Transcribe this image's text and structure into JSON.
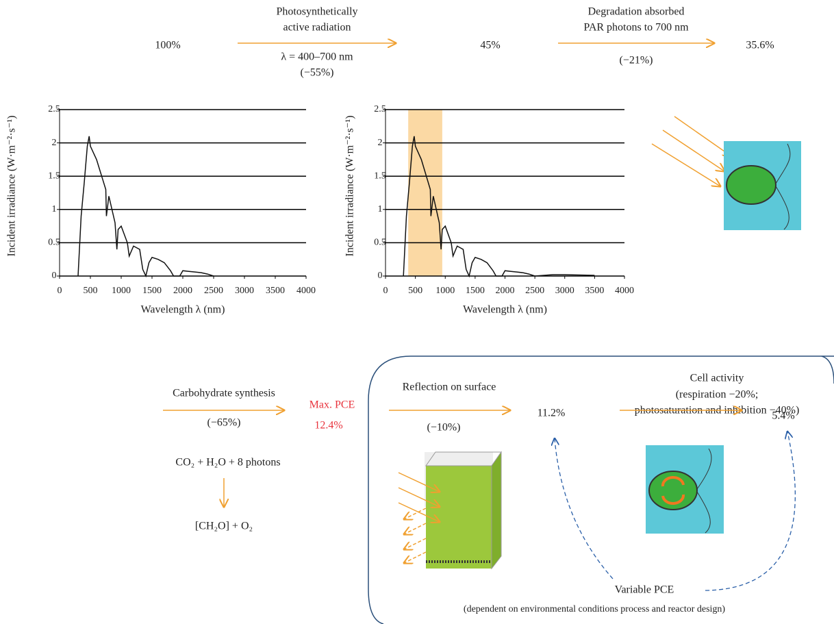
{
  "chart_data": [
    {
      "type": "line",
      "y_label": "Incident irradiance (W·m⁻²·s⁻¹)",
      "x_label": "Wavelength λ (nm)",
      "xlim": [
        0,
        4000
      ],
      "xticks": [
        0,
        500,
        1000,
        1500,
        2000,
        2500,
        3000,
        3500,
        4000
      ],
      "ylim": [
        0,
        2.5
      ],
      "yticks": [
        0,
        0.5,
        1,
        1.5,
        2,
        2.5
      ],
      "grid": true,
      "color": "#111111",
      "x": [
        300,
        350,
        400,
        450,
        480,
        500,
        550,
        600,
        650,
        700,
        750,
        760,
        800,
        900,
        930,
        950,
        1000,
        1100,
        1130,
        1200,
        1300,
        1350,
        1400,
        1450,
        1500,
        1600,
        1700,
        1800,
        1850,
        1950,
        2000,
        2100,
        2200,
        2300,
        2400,
        2500
      ],
      "values": [
        0,
        0.9,
        1.4,
        1.95,
        2.1,
        1.95,
        1.85,
        1.75,
        1.6,
        1.45,
        1.3,
        0.9,
        1.2,
        0.8,
        0.4,
        0.7,
        0.75,
        0.5,
        0.3,
        0.45,
        0.4,
        0.1,
        0,
        0.2,
        0.28,
        0.25,
        0.2,
        0.08,
        0,
        0,
        0.08,
        0.07,
        0.06,
        0.05,
        0.03,
        0
      ]
    },
    {
      "type": "line",
      "y_label": "Incident irradiance (W·m⁻²·s⁻¹)",
      "x_label": "Wavelength λ (nm)",
      "xlim": [
        0,
        4000
      ],
      "xticks": [
        0,
        500,
        1000,
        1500,
        2000,
        2500,
        3000,
        3500,
        4000
      ],
      "ylim": [
        0,
        2.5
      ],
      "yticks": [
        0,
        0.5,
        1,
        1.5,
        2,
        2.5
      ],
      "grid": true,
      "color": "#111111",
      "highlight": [
        380,
        950
      ],
      "highlight_color": "#fbd9a4",
      "x": [
        300,
        350,
        400,
        450,
        480,
        500,
        550,
        600,
        650,
        700,
        750,
        760,
        800,
        900,
        930,
        950,
        1000,
        1100,
        1130,
        1200,
        1300,
        1350,
        1400,
        1450,
        1500,
        1600,
        1700,
        1800,
        1850,
        1950,
        2000,
        2100,
        2200,
        2300,
        2400,
        2500,
        2800,
        3000,
        3500
      ],
      "values": [
        0,
        0.9,
        1.4,
        1.95,
        2.1,
        1.95,
        1.85,
        1.75,
        1.6,
        1.45,
        1.3,
        0.9,
        1.2,
        0.8,
        0.4,
        0.7,
        0.75,
        0.5,
        0.3,
        0.45,
        0.4,
        0.1,
        0,
        0.2,
        0.28,
        0.25,
        0.2,
        0.08,
        0,
        0,
        0.08,
        0.07,
        0.06,
        0.05,
        0.03,
        0,
        0.02,
        0.02,
        0.01
      ]
    }
  ],
  "diagram": {
    "start": "100%",
    "step1": {
      "label": [
        "Photosynthetically",
        "active radiation"
      ],
      "range": "λ = 400–700 nm",
      "loss": "(−55%)"
    },
    "value1": "45%",
    "step2": {
      "label": [
        "Degradation absorbed",
        "PAR photons to 700 nm"
      ],
      "loss": "(−21%)"
    },
    "value2": "35.6%",
    "step3": {
      "label": "Carbohydrate synthesis",
      "loss": "(−65%)"
    },
    "max_pce": {
      "label": "Max. PCE",
      "value": "12.4%"
    },
    "reaction": {
      "reactants": "CO₂ + H₂O + 8 photons",
      "products": "[CH₂O] + O₂"
    },
    "step4": {
      "label": "Reflection on surface",
      "loss": "(−10%)"
    },
    "value4": "11.2%",
    "step5": {
      "label": [
        "Cell activity",
        "(respiration −20%;",
        "photosaturation and inhibition −40%)"
      ]
    },
    "value5": "5.4%",
    "variable_pce": "Variable PCE",
    "variable_note": "(dependent on environmental conditions process and reactor design)"
  }
}
